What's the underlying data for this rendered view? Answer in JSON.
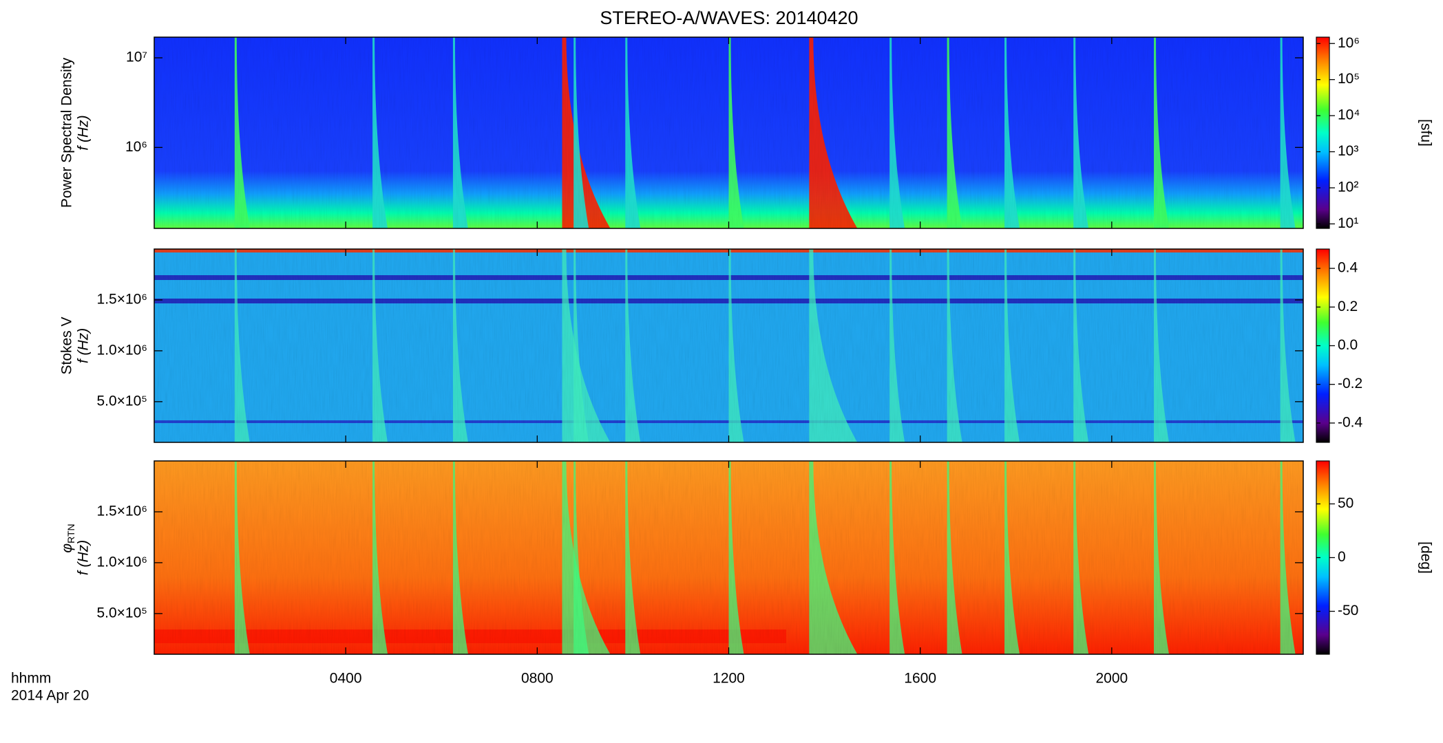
{
  "chart_data": [
    {
      "type": "heatmap",
      "title": "STEREO-A/WAVES: 20140420",
      "ylabel": {
        "name": "Power Spectral Density",
        "unit": "f (Hz)"
      },
      "ylog": true,
      "ylim": [
        125000,
        17000000
      ],
      "yticks": [
        {
          "value": 1000000,
          "label": "10⁶"
        },
        {
          "value": 10000000,
          "label": "10⁷"
        }
      ],
      "colorbar": {
        "log": true,
        "lim": [
          7.5,
          1500000
        ],
        "label": "[sfu]",
        "ticks": [
          {
            "value": 10,
            "label": "10¹"
          },
          {
            "value": 100,
            "label": "10²"
          },
          {
            "value": 1000,
            "label": "10³"
          },
          {
            "value": 10000,
            "label": "10⁴"
          },
          {
            "value": 100000,
            "label": "10⁵"
          },
          {
            "value": 1000000,
            "label": "10⁶"
          }
        ]
      }
    },
    {
      "type": "heatmap",
      "ylabel": {
        "name": "Stokes V",
        "unit": "f (Hz)"
      },
      "ylog": false,
      "ylim": [
        100000,
        2000000
      ],
      "yticks": [
        {
          "value": 500000,
          "label": "5.0×10⁵"
        },
        {
          "value": 1000000,
          "label": "1.0×10⁶"
        },
        {
          "value": 1500000,
          "label": "1.5×10⁶"
        }
      ],
      "colorbar": {
        "log": false,
        "lim": [
          -0.5,
          0.5
        ],
        "ticks": [
          -0.4,
          -0.2,
          {
            "value": 0,
            "label": "0.0"
          },
          0.2,
          0.4
        ]
      }
    },
    {
      "type": "heatmap",
      "ylabel": {
        "symbol": "φ",
        "subscript": "RTN",
        "unit": "f (Hz)"
      },
      "ylog": false,
      "ylim": [
        100000,
        2000000
      ],
      "yticks": [
        {
          "value": 500000,
          "label": "5.0×10⁵"
        },
        {
          "value": 1000000,
          "label": "1.0×10⁶"
        },
        {
          "value": 1500000,
          "label": "1.5×10⁶"
        }
      ],
      "colorbar": {
        "log": false,
        "lim": [
          -90,
          90
        ],
        "label": "[deg]",
        "ticks": [
          -50,
          0,
          50
        ]
      },
      "xlabel": "hhmm",
      "date": "2014 Apr 20",
      "xlim": [
        0,
        24
      ],
      "xticks": [
        {
          "value": 4,
          "label": "0400"
        },
        {
          "value": 8,
          "label": "0800"
        },
        {
          "value": 12,
          "label": "1200"
        },
        {
          "value": 16,
          "label": "1600"
        },
        {
          "value": 20,
          "label": "2000"
        }
      ]
    }
  ]
}
